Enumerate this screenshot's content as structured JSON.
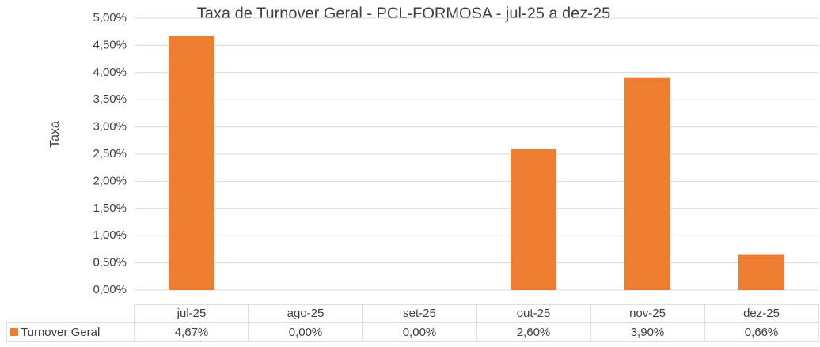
{
  "chart_data": {
    "type": "bar",
    "title": "Taxa de Turnover Geral - PCL-FORMOSA - jul-25 a dez-25",
    "y_label": "Taxa",
    "categories": [
      "jul-25",
      "ago-25",
      "set-25",
      "out-25",
      "nov-25",
      "dez-25"
    ],
    "series": [
      {
        "name": "Turnover Geral",
        "color": "#ed7d31",
        "values": [
          4.67,
          0,
          0,
          2.6,
          3.9,
          0.66
        ],
        "value_labels": [
          "4,67%",
          "0,00%",
          "0,00%",
          "2,60%",
          "3,90%",
          "0,66%"
        ]
      }
    ],
    "ylim": [
      0,
      5
    ],
    "yticks": [
      {
        "value": 0,
        "label": "0,00%"
      },
      {
        "value": 0.5,
        "label": "0,50%"
      },
      {
        "value": 1,
        "label": "1,00%"
      },
      {
        "value": 1.5,
        "label": "1,50%"
      },
      {
        "value": 2,
        "label": "2,00%"
      },
      {
        "value": 2.5,
        "label": "2,50%"
      },
      {
        "value": 3,
        "label": "3,00%"
      },
      {
        "value": 3.5,
        "label": "3,50%"
      },
      {
        "value": 4,
        "label": "4,00%"
      },
      {
        "value": 4.5,
        "label": "4,50%"
      },
      {
        "value": 5,
        "label": "5,00%"
      }
    ],
    "grid": true
  }
}
